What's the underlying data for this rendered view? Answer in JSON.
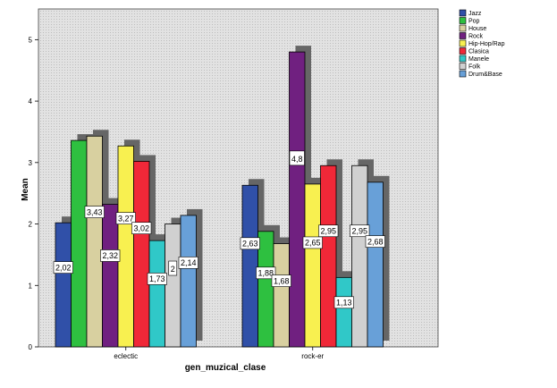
{
  "chart_data": {
    "type": "bar",
    "title": "",
    "xlabel": "gen_muzical_clase",
    "ylabel": "Mean",
    "ylim": [
      0,
      5.5
    ],
    "yticks": [
      "0",
      "1",
      "2",
      "3",
      "4",
      "5"
    ],
    "categories": [
      "eclectic",
      "rock-er"
    ],
    "series": [
      {
        "name": "Jazz",
        "color": "#3050a8",
        "values": [
          2.02,
          2.63
        ],
        "labels": [
          "2,02",
          "2,63"
        ]
      },
      {
        "name": "Pop",
        "color": "#2ec040",
        "values": [
          3.36,
          1.88
        ],
        "labels": [
          "",
          "1,88"
        ]
      },
      {
        "name": "House",
        "color": "#d8d0a0",
        "values": [
          3.43,
          1.68
        ],
        "labels": [
          "3,43",
          "1,68"
        ]
      },
      {
        "name": "Rock",
        "color": "#702080",
        "values": [
          2.32,
          4.8
        ],
        "labels": [
          "2,32",
          "4,8"
        ]
      },
      {
        "name": "Hip-Hop/Rap",
        "color": "#f8f050",
        "values": [
          3.27,
          2.65
        ],
        "labels": [
          "3,27",
          "2,65"
        ]
      },
      {
        "name": "Clasica",
        "color": "#f02838",
        "values": [
          3.02,
          2.95
        ],
        "labels": [
          "3,02",
          "2,95"
        ]
      },
      {
        "name": "Manele",
        "color": "#30c8c8",
        "values": [
          1.73,
          1.13
        ],
        "labels": [
          "1,73",
          "1,13"
        ]
      },
      {
        "name": "Folk",
        "color": "#d0d0d0",
        "values": [
          2.0,
          2.95
        ],
        "labels": [
          "2",
          "2,95"
        ]
      },
      {
        "name": "Drum&Base",
        "color": "#68a0d8",
        "values": [
          2.14,
          2.68
        ],
        "labels": [
          "2,14",
          "2,68"
        ]
      }
    ],
    "grid": false,
    "legend_position": "right"
  }
}
